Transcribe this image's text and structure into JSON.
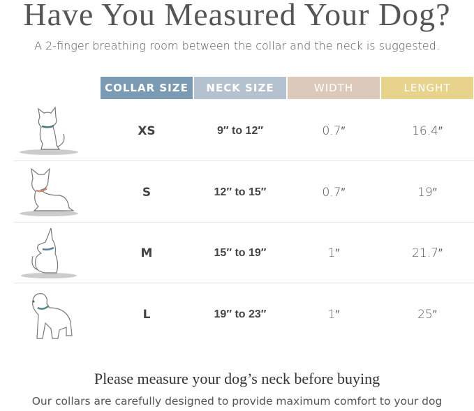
{
  "title": "Have You Measured Your Dog?",
  "subtitle": "A 2-finger breathing room between the collar and the neck is suggested.",
  "headers": [
    {
      "label": "COLLAR SIZE",
      "color": "#7b9ab3"
    },
    {
      "label": "NECK SIZE",
      "color": "#b3c2ce"
    },
    {
      "label": "WIDTH",
      "color": "#dcc9b9"
    },
    {
      "label": "LENGHT",
      "color": "#e7d38b"
    }
  ],
  "rows": [
    {
      "dog_icon": "chihuahua-dog-icon",
      "size": "XS",
      "neck": "9″ to 12″",
      "width": "0.7″",
      "length": "16.4″"
    },
    {
      "dog_icon": "french-bulldog-icon",
      "size": "S",
      "neck": "12″ to 15″",
      "width": "0.7″",
      "length": "19″"
    },
    {
      "dog_icon": "shepherd-dog-icon",
      "size": "M",
      "neck": "15″ to 19″",
      "width": "1″",
      "length": "21.7″"
    },
    {
      "dog_icon": "labrador-dog-icon",
      "size": "L",
      "neck": "19″ to 23″",
      "width": "1″",
      "length": "25″"
    }
  ],
  "footer": {
    "heading": "Please measure your dog’s neck before buying",
    "note": "Our collars are carefully designed to provide maximum comfort to your dog"
  }
}
